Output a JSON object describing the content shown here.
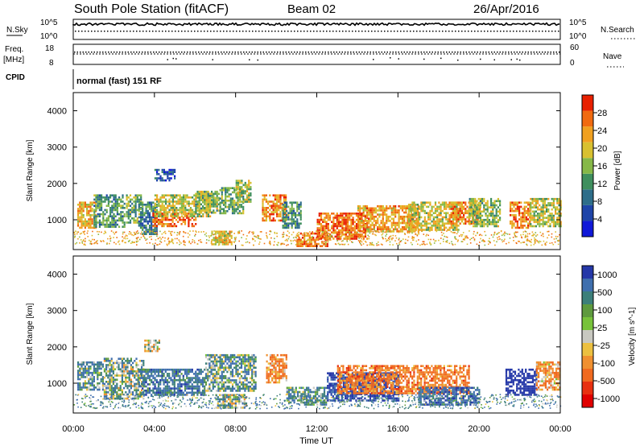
{
  "header": {
    "station": "South Pole Station (fitACF)",
    "beam": "Beam 02",
    "date": "26/Apr/2016"
  },
  "top_strips": {
    "nsky_label": "N.Sky",
    "nsky_ticks": [
      "10^5",
      "10^0"
    ],
    "nsearch_label": "N.Search",
    "nsearch_ticks": [
      "10^5",
      "10^0"
    ],
    "freq_label_line1": "Freq.",
    "freq_label_line2": "[MHz]",
    "freq_ticks": [
      "18",
      "8"
    ],
    "nave_label": "Nave",
    "nave_ticks": [
      "60",
      "0"
    ],
    "cpid_label": "CPID",
    "cpid_text": "normal (fast) 151 RF"
  },
  "time_axis": {
    "ticks": [
      "00:00",
      "04:00",
      "08:00",
      "12:00",
      "16:00",
      "20:00",
      "00:00"
    ],
    "label": "Time UT"
  },
  "colors": {
    "power": [
      "#1018d8",
      "#1e44a8",
      "#2e6e8a",
      "#3f8f5e",
      "#86b848",
      "#d8c030",
      "#f0a020",
      "#f06a10",
      "#e82000"
    ],
    "velocity": [
      "#2538a8",
      "#3f6fae",
      "#3c7f7a",
      "#5e9a3e",
      "#77c23a",
      "#c8c8c0",
      "#ecc040",
      "#f09030",
      "#f06a20",
      "#e83010",
      "#e00000"
    ]
  },
  "chart_data": [
    {
      "type": "heatmap",
      "title": "Power",
      "ylabel": "Slant Range [km]",
      "yticks": [
        "4000",
        "3000",
        "2000",
        "1000"
      ],
      "ylim": [
        180,
        4500
      ],
      "xlim": [
        0,
        24
      ],
      "colorbar": {
        "label": "Power [dB]",
        "ticks": [
          "28",
          "24",
          "20",
          "16",
          "12",
          "8",
          "4"
        ],
        "range": [
          0,
          32
        ]
      },
      "regions": [
        {
          "t0": 0.2,
          "t1": 1.1,
          "r0": 800,
          "r1": 1500,
          "value": 22
        },
        {
          "t0": 1.0,
          "t1": 2.5,
          "r0": 800,
          "r1": 1700,
          "value": 12
        },
        {
          "t0": 2.6,
          "t1": 3.3,
          "r0": 900,
          "r1": 1700,
          "value": 14
        },
        {
          "t0": 3.2,
          "t1": 4.1,
          "r0": 600,
          "r1": 1500,
          "value": 10
        },
        {
          "t0": 3.9,
          "t1": 6.0,
          "r0": 800,
          "r1": 1200,
          "value": 27
        },
        {
          "t0": 4.0,
          "t1": 6.8,
          "r0": 1100,
          "r1": 1700,
          "value": 18
        },
        {
          "t0": 4.0,
          "t1": 5.0,
          "r0": 2100,
          "r1": 2400,
          "value": 6
        },
        {
          "t0": 6.0,
          "t1": 7.2,
          "r0": 1200,
          "r1": 1800,
          "value": 16
        },
        {
          "t0": 6.8,
          "t1": 7.8,
          "r0": 350,
          "r1": 700,
          "value": 20
        },
        {
          "t0": 7.2,
          "t1": 8.4,
          "r0": 1200,
          "r1": 1900,
          "value": 15
        },
        {
          "t0": 8.0,
          "t1": 8.7,
          "r0": 1500,
          "r1": 2100,
          "value": 17
        },
        {
          "t0": 9.3,
          "t1": 10.5,
          "r0": 1000,
          "r1": 1700,
          "value": 24
        },
        {
          "t0": 10.3,
          "t1": 11.2,
          "r0": 800,
          "r1": 1500,
          "value": 12
        },
        {
          "t0": 11.0,
          "t1": 12.5,
          "r0": 300,
          "r1": 650,
          "value": 26
        },
        {
          "t0": 12.0,
          "t1": 14.5,
          "r0": 500,
          "r1": 1200,
          "value": 27
        },
        {
          "t0": 14.0,
          "t1": 17.0,
          "r0": 700,
          "r1": 1400,
          "value": 23
        },
        {
          "t0": 16.5,
          "t1": 19.0,
          "r0": 700,
          "r1": 1500,
          "value": 19
        },
        {
          "t0": 18.5,
          "t1": 20.0,
          "r0": 900,
          "r1": 1500,
          "value": 25
        },
        {
          "t0": 19.5,
          "t1": 21.0,
          "r0": 800,
          "r1": 1600,
          "value": 16
        },
        {
          "t0": 21.5,
          "t1": 22.5,
          "r0": 800,
          "r1": 1500,
          "value": 25
        },
        {
          "t0": 22.5,
          "t1": 24.0,
          "r0": 800,
          "r1": 1600,
          "value": 18
        }
      ]
    },
    {
      "type": "heatmap",
      "title": "Velocity",
      "ylabel": "Slant Range [km]",
      "yticks": [
        "4000",
        "3000",
        "2000",
        "1000"
      ],
      "ylim": [
        180,
        4500
      ],
      "xlim": [
        0,
        24
      ],
      "colorbar": {
        "label": "Velocity [m s^-1]",
        "ticks": [
          "1000",
          "500",
          "100",
          "25",
          "-25",
          "-100",
          "-500",
          "-1000"
        ]
      },
      "regions": [
        {
          "t0": 0.2,
          "t1": 1.5,
          "r0": 800,
          "r1": 1600,
          "value": 200
        },
        {
          "t0": 1.5,
          "t1": 3.5,
          "r0": 600,
          "r1": 1700,
          "value": 120
        },
        {
          "t0": 3.2,
          "t1": 6.5,
          "r0": 700,
          "r1": 1400,
          "value": 300
        },
        {
          "t0": 3.5,
          "t1": 4.2,
          "r0": 1900,
          "r1": 2200,
          "value": 0
        },
        {
          "t0": 6.5,
          "t1": 9.0,
          "r0": 800,
          "r1": 1800,
          "value": 150
        },
        {
          "t0": 7.0,
          "t1": 8.5,
          "r0": 300,
          "r1": 700,
          "value": 100
        },
        {
          "t0": 9.5,
          "t1": 10.5,
          "r0": 1000,
          "r1": 1800,
          "value": -250
        },
        {
          "t0": 10.5,
          "t1": 12.5,
          "r0": 400,
          "r1": 900,
          "value": 200
        },
        {
          "t0": 12.5,
          "t1": 16.0,
          "r0": 500,
          "r1": 1300,
          "value": 600
        },
        {
          "t0": 13.0,
          "t1": 19.5,
          "r0": 700,
          "r1": 1500,
          "value": -300
        },
        {
          "t0": 17.0,
          "t1": 20.0,
          "r0": 400,
          "r1": 900,
          "value": 400
        },
        {
          "t0": 21.3,
          "t1": 22.8,
          "r0": 700,
          "r1": 1400,
          "value": 900
        },
        {
          "t0": 22.8,
          "t1": 24.0,
          "r0": 800,
          "r1": 1600,
          "value": -200
        }
      ]
    }
  ]
}
